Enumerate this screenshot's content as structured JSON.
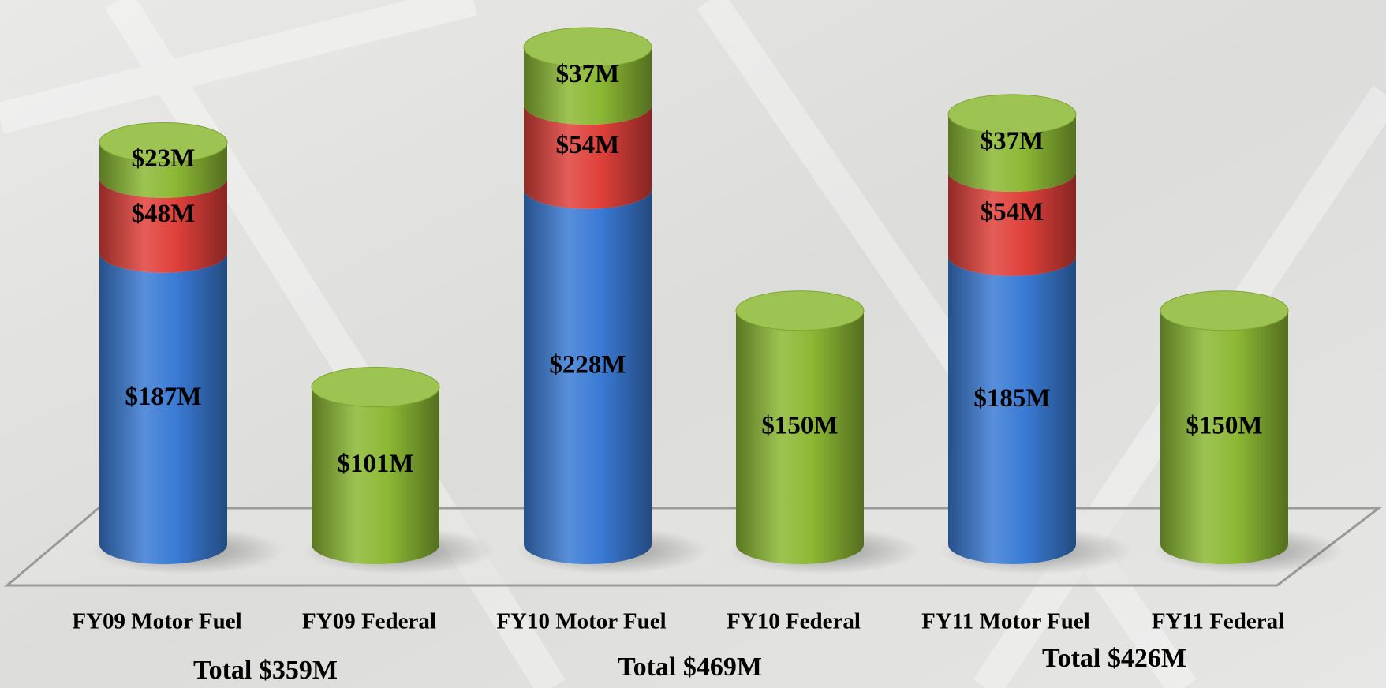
{
  "chart_data": {
    "type": "bar",
    "stacked": true,
    "categories": [
      "FY09 Motor Fuel",
      "FY09 Federal",
      "FY10 Motor Fuel",
      "FY10 Federal",
      "FY11 Motor Fuel",
      "FY11 Federal"
    ],
    "series": [
      {
        "color": "#3a7bd5",
        "values": [
          187,
          null,
          228,
          null,
          185,
          null
        ],
        "value_labels": [
          "$187M",
          null,
          "$228M",
          null,
          "$185M",
          null
        ]
      },
      {
        "color": "#e0403a",
        "values": [
          48,
          null,
          54,
          null,
          54,
          null
        ],
        "value_labels": [
          "$48M",
          null,
          "$54M",
          null,
          "$54M",
          null
        ]
      },
      {
        "color": "#8cb834",
        "values": [
          23,
          101,
          37,
          150,
          37,
          150
        ],
        "value_labels": [
          "$23M",
          "$101M",
          "$37M",
          "$150M",
          "$37M",
          "$150M"
        ]
      }
    ],
    "annotations": [
      "Total $359M",
      "Total $469M",
      "Total $426M"
    ]
  }
}
